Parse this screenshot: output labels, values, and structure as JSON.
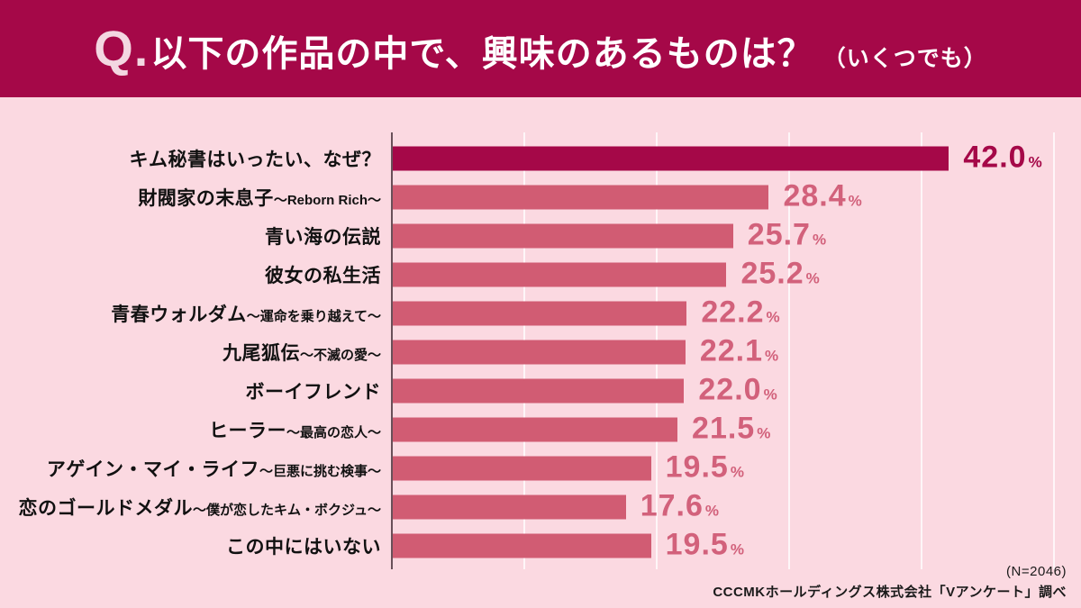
{
  "header": {
    "q_label": "Q.",
    "title": "以下の作品の中で、興味のあるものは？",
    "note": "（いくつでも）"
  },
  "chart_data": {
    "type": "bar",
    "orientation": "horizontal",
    "value_unit": "%",
    "xlim": [
      0,
      52
    ],
    "gridline_interval_pct": 10,
    "grid": true,
    "highlight_index": 0,
    "categories": [
      "キム秘書はいったい、なぜ？",
      "財閥家の末息子",
      "青い海の伝説",
      "彼女の私生活",
      "青春ウォルダム",
      "九尾狐伝",
      "ボーイフレンド",
      "ヒーラー",
      "アゲイン・マイ・ライフ",
      "恋のゴールドメダル",
      "この中にはいない"
    ],
    "subtitles": [
      "",
      "～Reborn Rich～",
      "",
      "",
      "～運命を乗り越えて～",
      "～不滅の愛～",
      "",
      "～最高の恋人～",
      "～巨悪に挑む検事～",
      "～僕が恋したキム・ボクジュ～",
      ""
    ],
    "values": [
      42.0,
      28.4,
      25.7,
      25.2,
      22.2,
      22.1,
      22.0,
      21.5,
      19.5,
      17.6,
      19.5
    ],
    "colors": {
      "header_bg": "#A50848",
      "page_bg": "#FBD9E1",
      "highlight_bar": "#A50848",
      "bar": "#D15C73",
      "highlight_value_text": "#A50848",
      "value_text": "#D2617B",
      "axis_line": "#695059",
      "gridline": "rgba(255,255,255,0.75)"
    }
  },
  "footer": {
    "sample_size": "(N=2046)",
    "source": "CCCMKホールディングス株式会社「Vアンケート」調べ"
  }
}
